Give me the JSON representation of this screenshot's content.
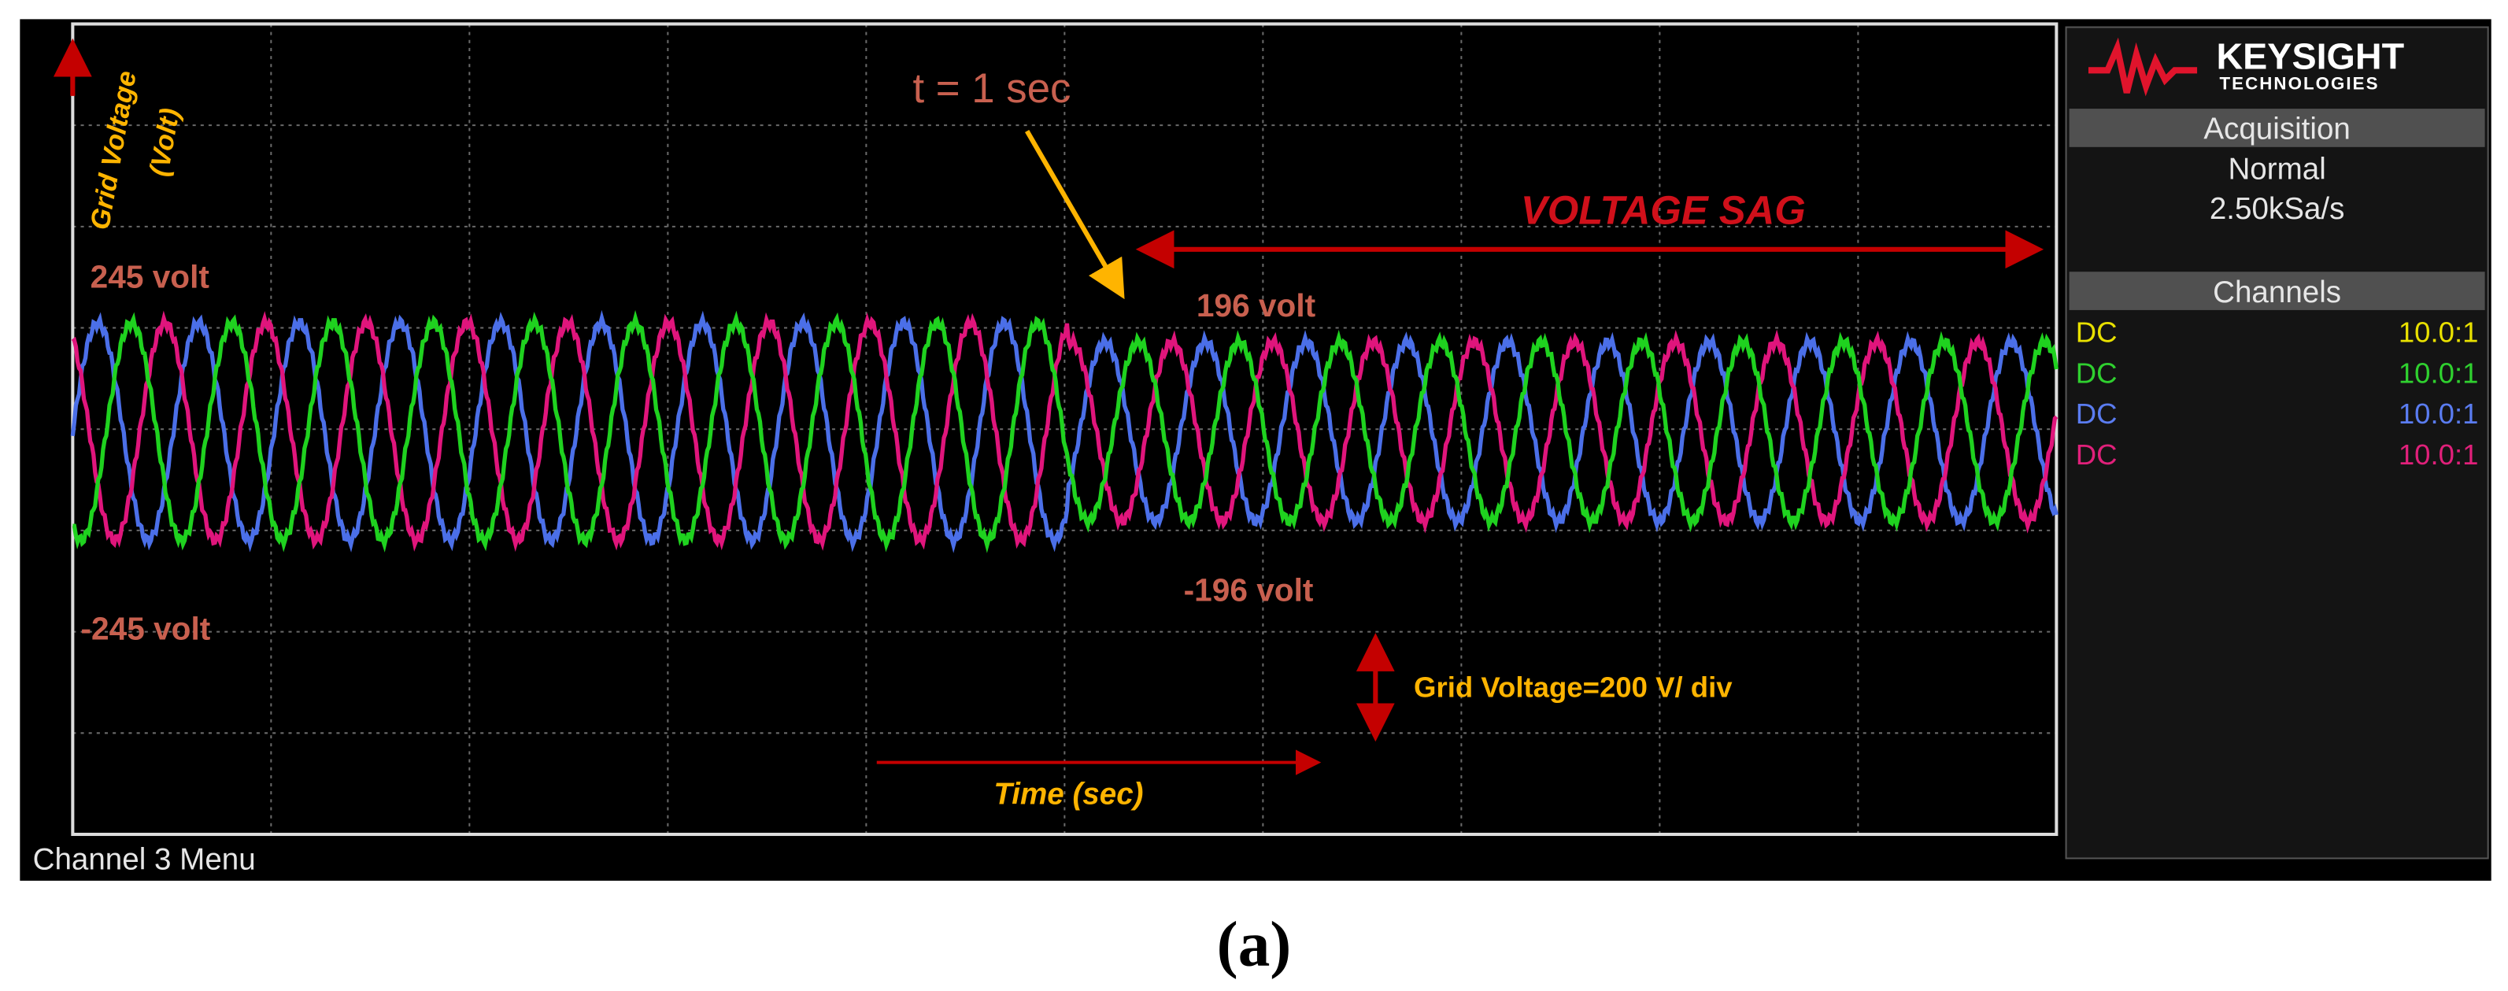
{
  "screen": {
    "y_axis_label": [
      "Grid Voltage",
      "(Volt)"
    ],
    "event_label": "t = 1 sec",
    "sag_label": "VOLTAGE SAG",
    "peak_before": "245 volt",
    "trough_before": "-245 volt",
    "peak_after": "196 volt",
    "trough_after": "-196 volt",
    "scale_label": "Grid Voltage=200 V/ div",
    "time_label": "Time (sec)"
  },
  "panel": {
    "brand": "KEYSIGHT",
    "brand_sub": "TECHNOLOGIES",
    "acquisition": {
      "header": "Acquisition",
      "mode": "Normal",
      "rate": "2.50kSa/s"
    },
    "channels": {
      "header": "Channels",
      "rows": [
        [
          "DC",
          "10.0:1"
        ],
        [
          "DC",
          "10.0:1"
        ],
        [
          "DC",
          "10.0:1"
        ],
        [
          "DC",
          "10.0:1"
        ]
      ]
    }
  },
  "status_bar": "Channel 3 Menu",
  "caption": "(a)"
}
